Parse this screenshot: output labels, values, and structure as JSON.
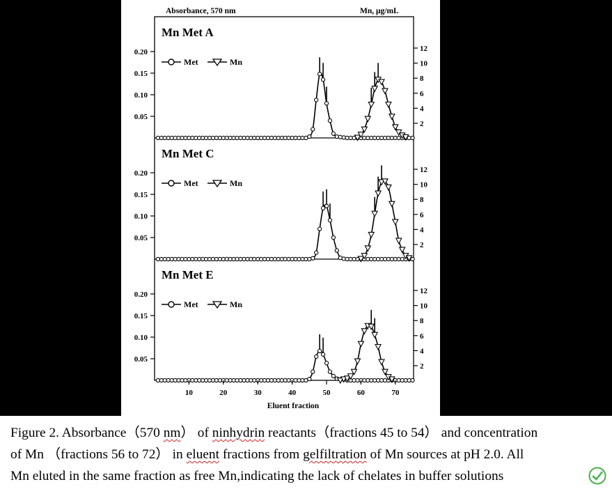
{
  "figure": {
    "left_axis_label": "Absorbance, 570 nm",
    "right_axis_label": "Mn, μg/mL",
    "x_axis_label": "Eluent fraction"
  },
  "chart_data": [
    {
      "type": "line",
      "title": "Mn Met A",
      "x": [
        1,
        2,
        3,
        4,
        5,
        6,
        7,
        8,
        9,
        10,
        11,
        12,
        13,
        14,
        15,
        16,
        17,
        18,
        19,
        20,
        21,
        22,
        23,
        24,
        25,
        26,
        27,
        28,
        29,
        30,
        31,
        32,
        33,
        34,
        35,
        36,
        37,
        38,
        39,
        40,
        41,
        42,
        43,
        44,
        45,
        46,
        47,
        48,
        49,
        50,
        51,
        52,
        53,
        54,
        55,
        56,
        57,
        58,
        59,
        60,
        61,
        62,
        63,
        64,
        65,
        66,
        67,
        68,
        69,
        70,
        71,
        72,
        73,
        74,
        75
      ],
      "series": [
        {
          "name": "Met",
          "marker": "circle",
          "axis": "left",
          "values": [
            0,
            0,
            0,
            0,
            0,
            0,
            0,
            0,
            0,
            0,
            0,
            0,
            0,
            0,
            0,
            0,
            0,
            0,
            0,
            0,
            0,
            0,
            0,
            0,
            0,
            0,
            0,
            0,
            0,
            0,
            0,
            0,
            0,
            0,
            0,
            0,
            0,
            0,
            0,
            0,
            0,
            0,
            0,
            0,
            0.003,
            0.02,
            0.088,
            0.148,
            0.135,
            0.08,
            0.04,
            0.01,
            0.003,
            0.002,
            0.001,
            0,
            0,
            0,
            0,
            0,
            0,
            0,
            0,
            0,
            0,
            0,
            0,
            0,
            0,
            0,
            0,
            0,
            0,
            0,
            0
          ]
        },
        {
          "name": "Mn",
          "marker": "triangle",
          "axis": "right",
          "values": [
            0,
            0,
            0,
            0,
            0,
            0,
            0,
            0,
            0,
            0,
            0,
            0,
            0,
            0,
            0,
            0,
            0,
            0,
            0,
            0,
            0,
            0,
            0,
            0,
            0,
            0,
            0,
            0,
            0,
            0,
            0,
            0,
            0,
            0,
            0,
            0,
            0,
            0,
            0,
            0,
            0,
            0,
            0,
            0,
            0,
            0,
            0,
            0,
            0,
            0,
            0,
            0,
            0,
            0,
            0,
            0,
            0,
            0,
            0.1,
            0.5,
            1.2,
            2.6,
            4.5,
            6.6,
            7.8,
            7.5,
            6.3,
            4.5,
            2.9,
            1.5,
            0.8,
            0.4,
            0.15,
            0,
            0
          ]
        }
      ],
      "error_bar_x": [
        48,
        49,
        50,
        63,
        64,
        65
      ],
      "ylim_left": [
        0,
        0.2
      ],
      "yticks_left": [
        "0.20",
        "0.15",
        "0.10",
        "0.05"
      ],
      "ylim_right": [
        0,
        12
      ],
      "yticks_right": [
        "12",
        "10",
        "8",
        "6",
        "4",
        "2"
      ],
      "legend": [
        "Met",
        "Mn"
      ],
      "legend_position": "top-left"
    },
    {
      "type": "line",
      "title": "Mn Met C",
      "x": [
        1,
        2,
        3,
        4,
        5,
        6,
        7,
        8,
        9,
        10,
        11,
        12,
        13,
        14,
        15,
        16,
        17,
        18,
        19,
        20,
        21,
        22,
        23,
        24,
        25,
        26,
        27,
        28,
        29,
        30,
        31,
        32,
        33,
        34,
        35,
        36,
        37,
        38,
        39,
        40,
        41,
        42,
        43,
        44,
        45,
        46,
        47,
        48,
        49,
        50,
        51,
        52,
        53,
        54,
        55,
        56,
        57,
        58,
        59,
        60,
        61,
        62,
        63,
        64,
        65,
        66,
        67,
        68,
        69,
        70,
        71,
        72,
        73,
        74,
        75
      ],
      "series": [
        {
          "name": "Met",
          "marker": "circle",
          "axis": "left",
          "values": [
            0,
            0,
            0,
            0,
            0,
            0,
            0,
            0,
            0,
            0,
            0,
            0,
            0,
            0,
            0,
            0,
            0,
            0,
            0,
            0,
            0,
            0,
            0,
            0,
            0,
            0,
            0,
            0,
            0,
            0,
            0,
            0,
            0,
            0,
            0,
            0,
            0,
            0,
            0,
            0,
            0,
            0,
            0,
            0,
            0,
            0.002,
            0.015,
            0.07,
            0.118,
            0.123,
            0.09,
            0.05,
            0.02,
            0.003,
            0.001,
            0,
            0,
            0,
            0,
            0,
            0,
            0,
            0,
            0,
            0,
            0,
            0,
            0,
            0,
            0,
            0,
            0,
            0,
            0,
            0
          ]
        },
        {
          "name": "Mn",
          "marker": "triangle",
          "axis": "right",
          "values": [
            0,
            0,
            0,
            0,
            0,
            0,
            0,
            0,
            0,
            0,
            0,
            0,
            0,
            0,
            0,
            0,
            0,
            0,
            0,
            0,
            0,
            0,
            0,
            0,
            0,
            0,
            0,
            0,
            0,
            0,
            0,
            0,
            0,
            0,
            0,
            0,
            0,
            0,
            0,
            0,
            0,
            0,
            0,
            0,
            0,
            0,
            0,
            0,
            0,
            0,
            0,
            0,
            0,
            0,
            0,
            0,
            0,
            0,
            0,
            0.1,
            0.5,
            1.5,
            3.3,
            6.1,
            8.8,
            10.3,
            10.4,
            9.6,
            7.4,
            5,
            2.5,
            1.3,
            0.5,
            0.2,
            0
          ]
        }
      ],
      "error_bar_x": [
        49,
        50,
        51,
        64,
        65,
        66
      ],
      "ylim_left": [
        0,
        0.2
      ],
      "yticks_left": [
        "0.20",
        "0.15",
        "0.10",
        "0.05"
      ],
      "ylim_right": [
        0,
        12
      ],
      "yticks_right": [
        "12",
        "10",
        "8",
        "6",
        "4",
        "2"
      ],
      "legend": [
        "Met",
        "Mn"
      ],
      "legend_position": "top-left"
    },
    {
      "type": "line",
      "title": "Mn Met E",
      "x": [
        1,
        2,
        3,
        4,
        5,
        6,
        7,
        8,
        9,
        10,
        11,
        12,
        13,
        14,
        15,
        16,
        17,
        18,
        19,
        20,
        21,
        22,
        23,
        24,
        25,
        26,
        27,
        28,
        29,
        30,
        31,
        32,
        33,
        34,
        35,
        36,
        37,
        38,
        39,
        40,
        41,
        42,
        43,
        44,
        45,
        46,
        47,
        48,
        49,
        50,
        51,
        52,
        53,
        54,
        55,
        56,
        57,
        58,
        59,
        60,
        61,
        62,
        63,
        64,
        65,
        66,
        67,
        68,
        69,
        70,
        71,
        72,
        73,
        74,
        75
      ],
      "series": [
        {
          "name": "Met",
          "marker": "circle",
          "axis": "left",
          "values": [
            0,
            0,
            0,
            0,
            0,
            0,
            0,
            0,
            0,
            0,
            0,
            0,
            0,
            0,
            0,
            0,
            0,
            0,
            0,
            0,
            0,
            0,
            0,
            0,
            0,
            0,
            0,
            0,
            0,
            0,
            0,
            0,
            0,
            0,
            0,
            0,
            0,
            0,
            0,
            0,
            0,
            0,
            0,
            0,
            0.003,
            0.02,
            0.055,
            0.068,
            0.06,
            0.04,
            0.02,
            0.01,
            0.004,
            0.002,
            0.002,
            0,
            0,
            0,
            0,
            0,
            0,
            0,
            0,
            0,
            0,
            0,
            0,
            0,
            0,
            0,
            0,
            0,
            0,
            0,
            0
          ]
        },
        {
          "name": "Mn",
          "marker": "triangle",
          "axis": "right",
          "values": [
            0,
            0,
            0,
            0,
            0,
            0,
            0,
            0,
            0,
            0,
            0,
            0,
            0,
            0,
            0,
            0,
            0,
            0,
            0,
            0,
            0,
            0,
            0,
            0,
            0,
            0,
            0,
            0,
            0,
            0,
            0,
            0,
            0,
            0,
            0,
            0,
            0,
            0,
            0,
            0,
            0,
            0,
            0,
            0,
            0,
            0,
            0,
            0,
            0,
            0,
            0,
            0,
            0,
            0.05,
            0.2,
            0.3,
            0.6,
            1.2,
            2.6,
            4.9,
            6.6,
            7.3,
            7.2,
            6.1,
            4.5,
            2.5,
            1.2,
            0.5,
            0.2,
            0,
            0,
            0,
            0,
            0,
            0
          ]
        }
      ],
      "error_bar_x": [
        48,
        49,
        63,
        64
      ],
      "ylim_left": [
        0,
        0.2
      ],
      "yticks_left": [
        "0.20",
        "0.15",
        "0.10",
        "0.05"
      ],
      "ylim_right": [
        0,
        12
      ],
      "yticks_right": [
        "12",
        "10",
        "8",
        "6",
        "4",
        "2"
      ],
      "legend": [
        "Met",
        "Mn"
      ],
      "legend_position": "top-left"
    }
  ],
  "x_ticks": [
    "10",
    "20",
    "30",
    "40",
    "50",
    "60",
    "70"
  ],
  "caption": {
    "line1_a": "Figure 2. Absorbance（570 ",
    "line1_b": "nm",
    "line1_c": "） of ",
    "line1_d": "ninhydrin",
    "line1_e": " reactants（fractions 45 to 54） and concentration",
    "line2_a": "of Mn （fractions 56 to 72） in ",
    "line2_b": "eluent",
    "line2_c": " fractions from ",
    "line2_d": "gelfiltration",
    "line2_e": " of Mn sources at pH 2.0. All",
    "line3": "Mn eluted in the same fraction as free Mn,indicating the lack of chelates in buffer solutions"
  },
  "colors": {
    "background": "#000000",
    "panel": "#ffffff",
    "ink": "#000000",
    "logo": "#4caf50",
    "wavy": "#d02020"
  },
  "icons": {
    "logo": "leaf-check-icon"
  }
}
